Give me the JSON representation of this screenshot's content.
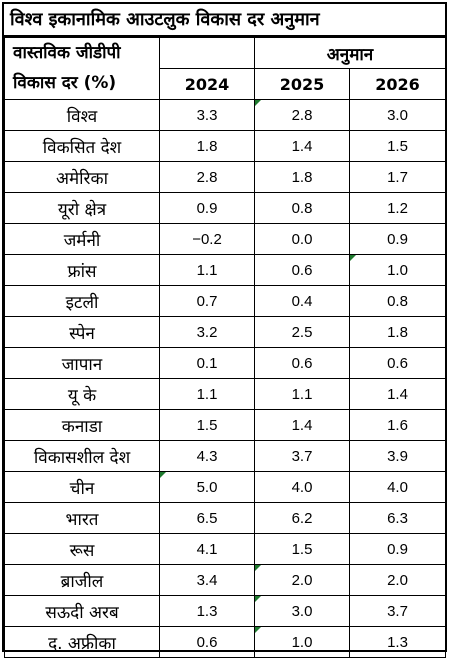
{
  "title": "विश्व इकानामिक आउटलुक विकास दर अनुमान",
  "header": {
    "metric_line1": "वास्तविक जीडीपी",
    "metric_line2": "विकास दर (%)",
    "projection": "अनुमान",
    "years": [
      "2024",
      "2025",
      "2026"
    ]
  },
  "rows": [
    {
      "country": "विश्व",
      "v2024": "3.3",
      "v2025": "2.8",
      "v2026": "3.0"
    },
    {
      "country": "विकसित देश",
      "v2024": "1.8",
      "v2025": "1.4",
      "v2026": "1.5"
    },
    {
      "country": "अमेरिका",
      "v2024": "2.8",
      "v2025": "1.8",
      "v2026": "1.7"
    },
    {
      "country": "यूरो क्षेत्र",
      "v2024": "0.9",
      "v2025": "0.8",
      "v2026": "1.2"
    },
    {
      "country": "जर्मनी",
      "v2024": "−0.2",
      "v2025": "0.0",
      "v2026": "0.9"
    },
    {
      "country": "फ्रांस",
      "v2024": "1.1",
      "v2025": "0.6",
      "v2026": "1.0"
    },
    {
      "country": "इटली",
      "v2024": "0.7",
      "v2025": "0.4",
      "v2026": "0.8"
    },
    {
      "country": "स्पेन",
      "v2024": "3.2",
      "v2025": "2.5",
      "v2026": "1.8"
    },
    {
      "country": "जापान",
      "v2024": "0.1",
      "v2025": "0.6",
      "v2026": "0.6"
    },
    {
      "country": "यू के",
      "v2024": "1.1",
      "v2025": "1.1",
      "v2026": "1.4"
    },
    {
      "country": "कनाडा",
      "v2024": "1.5",
      "v2025": "1.4",
      "v2026": "1.6"
    },
    {
      "country": "विकासशील देश",
      "v2024": "4.3",
      "v2025": "3.7",
      "v2026": "3.9"
    },
    {
      "country": "चीन",
      "v2024": "5.0",
      "v2025": "4.0",
      "v2026": "4.0"
    },
    {
      "country": "भारत",
      "v2024": "6.5",
      "v2025": "6.2",
      "v2026": "6.3"
    },
    {
      "country": "रूस",
      "v2024": "4.1",
      "v2025": "1.5",
      "v2026": "0.9"
    },
    {
      "country": "ब्राजील",
      "v2024": "3.4",
      "v2025": "2.0",
      "v2026": "2.0"
    },
    {
      "country": "सऊदी अरब",
      "v2024": "1.3",
      "v2025": "3.0",
      "v2026": "3.7"
    },
    {
      "country": "द. अफ्रीका",
      "v2024": "0.6",
      "v2025": "1.0",
      "v2026": "1.3"
    }
  ],
  "marker_color": "#1e7a2e"
}
